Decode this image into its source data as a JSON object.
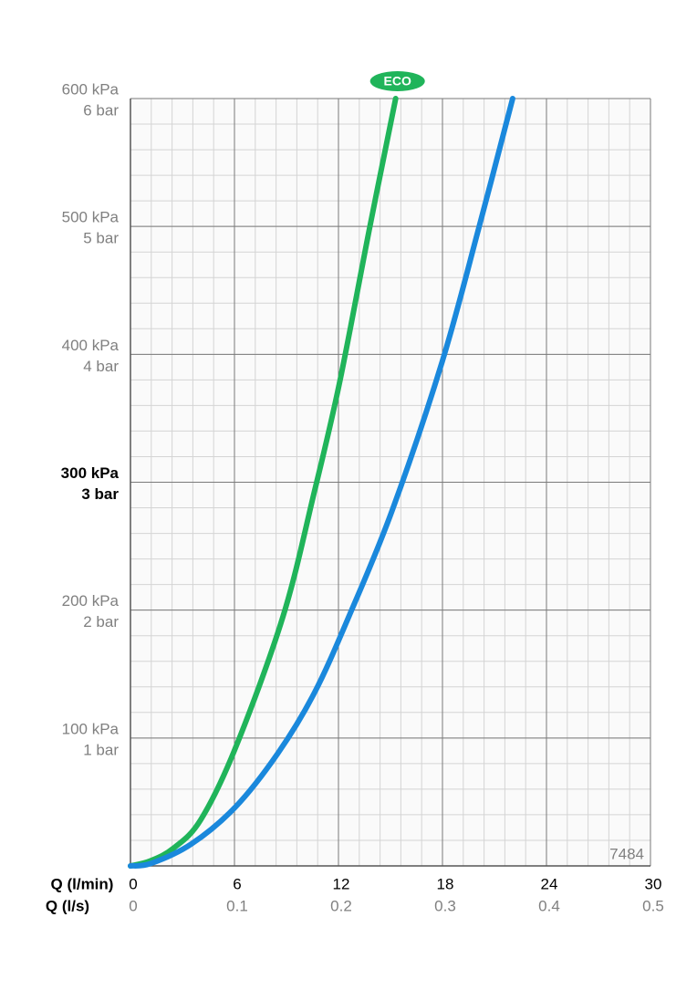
{
  "chart_data": {
    "type": "line",
    "xlabel": "Q (l/min)",
    "x2label": "Q (l/s)",
    "xlim": [
      0,
      30
    ],
    "xticks": [
      0,
      6,
      12,
      18,
      24,
      30
    ],
    "x2lim": [
      0,
      0.5
    ],
    "x2ticks": [
      0,
      0.1,
      0.2,
      0.3,
      0.4,
      0.5
    ],
    "ylim": [
      0,
      600
    ],
    "yticks": [
      {
        "value": 100,
        "label": "100 kPa"
      },
      {
        "value": 200,
        "label": "200 kPa"
      },
      {
        "value": 300,
        "label": "300 kPa"
      },
      {
        "value": 400,
        "label": "400 kPa"
      },
      {
        "value": 500,
        "label": "500 kPa"
      },
      {
        "value": 600,
        "label": "600 kPa"
      }
    ],
    "y2lim": [
      0,
      6
    ],
    "y2ticks": [
      {
        "value": 1,
        "label": "1 bar"
      },
      {
        "value": 2,
        "label": "2 bar"
      },
      {
        "value": 3,
        "label": "3 bar"
      },
      {
        "value": 4,
        "label": "4 bar"
      },
      {
        "value": 5,
        "label": "5 bar"
      },
      {
        "value": 6,
        "label": "6 bar"
      }
    ],
    "emphasized_ytick": 300,
    "grid": true,
    "minor_xstep": 1.2,
    "minor_ystep": 20,
    "annotation": "7484",
    "series": [
      {
        "name": "ECO",
        "color": "#20b45a",
        "x": [
          0,
          1.16,
          2.5,
          4.05,
          6.05,
          8.8,
          10.6,
          12.05,
          13.8,
          15.3
        ],
        "values": [
          0,
          4,
          14,
          36,
          92,
          195,
          292,
          377,
          499,
          600
        ]
      },
      {
        "color": "#1a88dc",
        "x": [
          0,
          1.2,
          3.5,
          6.05,
          8.5,
          10.6,
          12.6,
          15.1,
          18,
          20.1,
          22.05
        ],
        "values": [
          0,
          2,
          17,
          46,
          88,
          135,
          195,
          278,
          395,
          499,
          600
        ]
      }
    ]
  }
}
